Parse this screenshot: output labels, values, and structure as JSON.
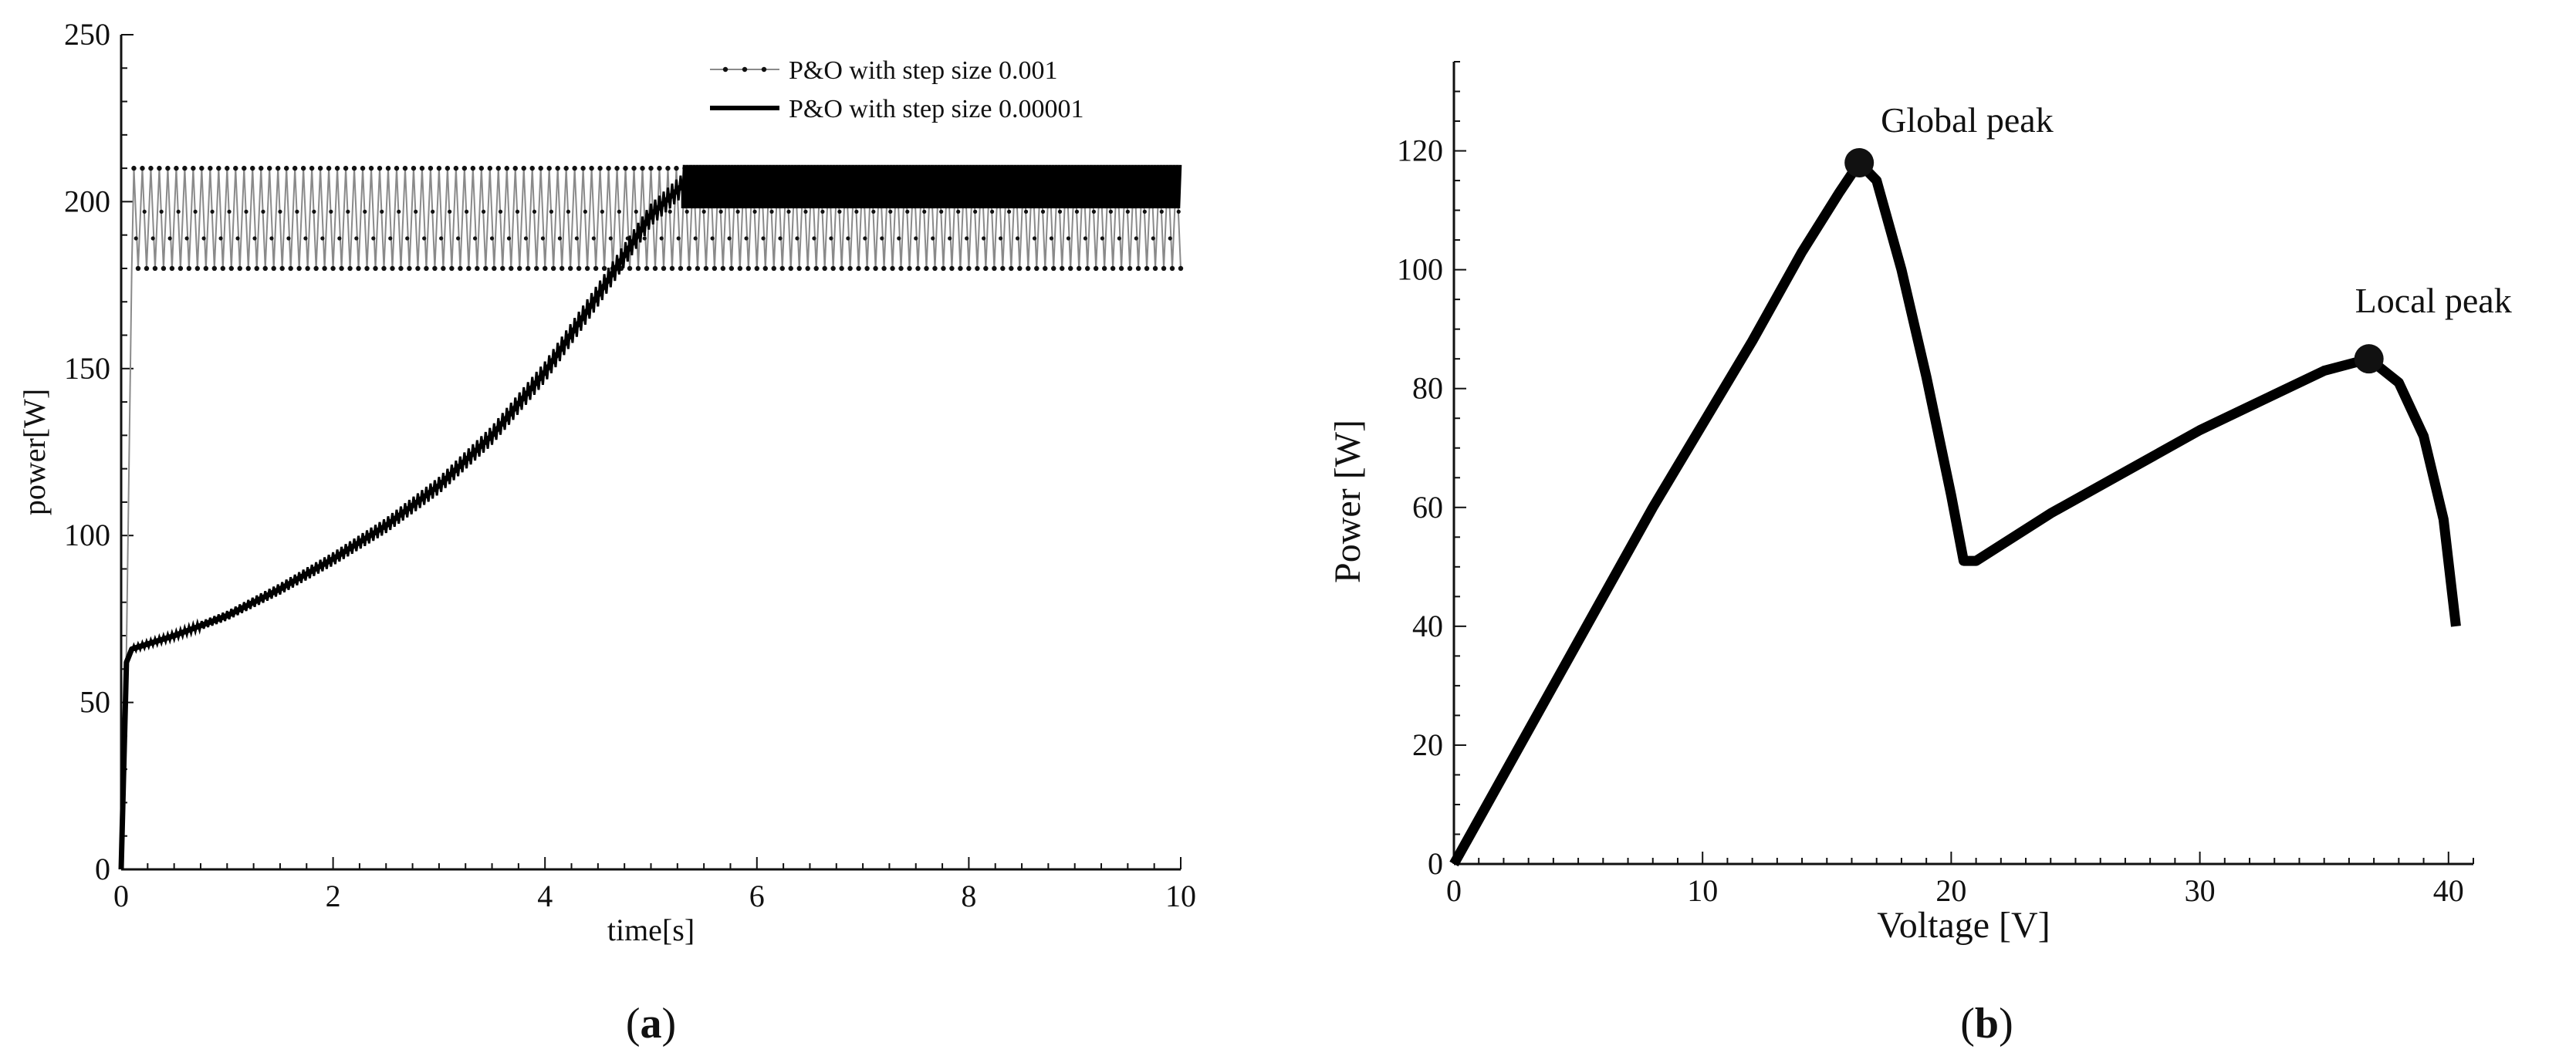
{
  "colors": {
    "ink": "#111111",
    "light_series": "#8a8a8a",
    "dark_series": "#000000"
  },
  "chart_data": [
    {
      "type": "line",
      "panel_label": {
        "open": "(",
        "letter": "a",
        "close": ")"
      },
      "xlabel": "time[s]",
      "ylabel": "power[W]",
      "xlim": [
        0,
        10
      ],
      "ylim": [
        0,
        250
      ],
      "x_ticks": [
        0,
        2,
        4,
        6,
        8,
        10
      ],
      "y_ticks": [
        0,
        50,
        100,
        150,
        200,
        250
      ],
      "x_tick_labels": [
        "0",
        "2",
        "4",
        "6",
        "8",
        "10"
      ],
      "y_tick_labels": [
        "0",
        "50",
        "100",
        "150",
        "200",
        "250"
      ],
      "legend": {
        "position": "top-right"
      },
      "series": [
        {
          "name": "P&O with step size 0.001",
          "style": "thin gray with dot markers, rapid oscillation",
          "x": [
            0,
            0.05,
            0.1,
            0.15,
            10
          ],
          "y": [
            0,
            66,
            190,
            195,
            195
          ],
          "oscillation_band": [
            180,
            210
          ]
        },
        {
          "name": "P&O with step size 0.00001",
          "style": "thick black",
          "x": [
            0,
            0.05,
            0.1,
            0.5,
            1.0,
            1.5,
            2.0,
            2.5,
            3.0,
            3.5,
            4.0,
            4.5,
            5.0,
            5.3,
            6,
            7,
            8,
            9,
            10
          ],
          "y": [
            0,
            62,
            66,
            70,
            76,
            84,
            93,
            103,
            115,
            130,
            149,
            172,
            196,
            205,
            205,
            205,
            205,
            205,
            205
          ],
          "oscillation_band": [
            198,
            211
          ]
        }
      ]
    },
    {
      "type": "line",
      "panel_label": {
        "open": "(",
        "letter": "b",
        "close": ")"
      },
      "xlabel": "Voltage [V]",
      "ylabel": "Power [W]",
      "xlim": [
        0,
        41
      ],
      "ylim": [
        0,
        135
      ],
      "x_ticks": [
        0,
        10,
        20,
        30,
        40
      ],
      "y_ticks": [
        0,
        20,
        40,
        60,
        80,
        100,
        120
      ],
      "x_tick_labels": [
        "0",
        "10",
        "20",
        "30",
        "40"
      ],
      "y_tick_labels": [
        "0",
        "20",
        "40",
        "60",
        "80",
        "100",
        "120"
      ],
      "series": [
        {
          "style": "thick black",
          "x": [
            0,
            2,
            4,
            6,
            8,
            10,
            12,
            14,
            15.5,
            16.3,
            17,
            18,
            19,
            20,
            20.5,
            21,
            24,
            27,
            30,
            33,
            35,
            36.8,
            38,
            39,
            39.8,
            40.3
          ],
          "y": [
            0,
            15,
            30,
            45,
            60,
            74,
            88,
            103,
            113,
            118,
            115,
            100,
            82,
            62,
            51,
            51,
            59,
            66,
            73,
            79,
            83,
            85,
            81,
            72,
            58,
            40
          ]
        }
      ],
      "annotations": [
        {
          "text": "Global peak",
          "x": 16.3,
          "y": 118
        },
        {
          "text": "Local peak",
          "x": 36.8,
          "y": 85
        }
      ]
    }
  ]
}
